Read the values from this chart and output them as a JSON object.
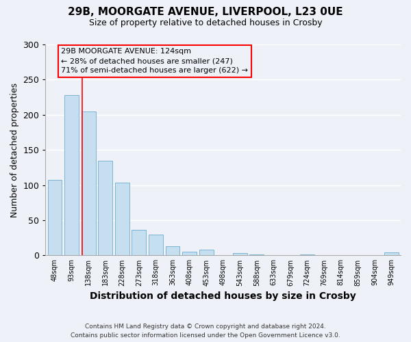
{
  "title_line1": "29B, MOORGATE AVENUE, LIVERPOOL, L23 0UE",
  "title_line2": "Size of property relative to detached houses in Crosby",
  "xlabel": "Distribution of detached houses by size in Crosby",
  "ylabel": "Number of detached properties",
  "bar_labels": [
    "48sqm",
    "93sqm",
    "138sqm",
    "183sqm",
    "228sqm",
    "273sqm",
    "318sqm",
    "363sqm",
    "408sqm",
    "453sqm",
    "498sqm",
    "543sqm",
    "588sqm",
    "633sqm",
    "679sqm",
    "724sqm",
    "769sqm",
    "814sqm",
    "859sqm",
    "904sqm",
    "949sqm"
  ],
  "bar_values": [
    107,
    228,
    205,
    135,
    104,
    36,
    30,
    13,
    5,
    8,
    0,
    3,
    1,
    0,
    0,
    1,
    0,
    0,
    0,
    0,
    4
  ],
  "bar_color": "#c5dff0",
  "bar_edge_color": "#7ab3d4",
  "annotation_line1": "29B MOORGATE AVENUE: 124sqm",
  "annotation_line2": "← 28% of detached houses are smaller (247)",
  "annotation_line3": "71% of semi-detached houses are larger (622) →",
  "red_line_x": 1.62,
  "ylim": [
    0,
    300
  ],
  "yticks": [
    0,
    50,
    100,
    150,
    200,
    250,
    300
  ],
  "footer_line1": "Contains HM Land Registry data © Crown copyright and database right 2024.",
  "footer_line2": "Contains public sector information licensed under the Open Government Licence v3.0.",
  "background_color": "#eef2f8"
}
